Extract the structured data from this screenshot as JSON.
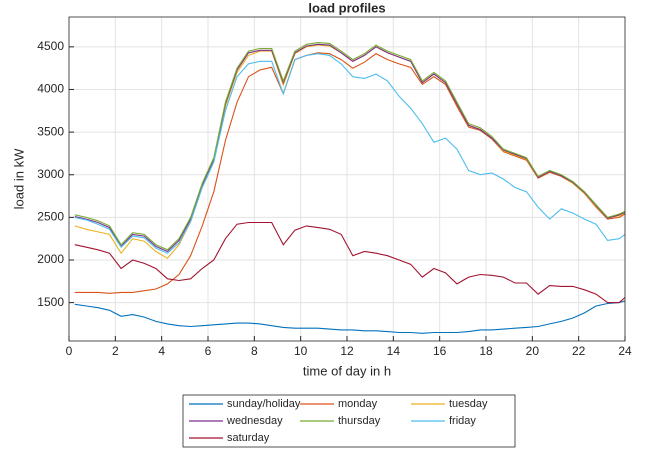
{
  "chart_data": {
    "type": "line",
    "title": "load profiles",
    "xlabel": "time of day in h",
    "ylabel": "load in kW",
    "x": [
      0.25,
      0.75,
      1.25,
      1.75,
      2.25,
      2.75,
      3.25,
      3.75,
      4.25,
      4.75,
      5.25,
      5.75,
      6.25,
      6.75,
      7.25,
      7.75,
      8.25,
      8.75,
      9.25,
      9.75,
      10.25,
      10.75,
      11.25,
      11.75,
      12.25,
      12.75,
      13.25,
      13.75,
      14.25,
      14.75,
      15.25,
      15.75,
      16.25,
      16.75,
      17.25,
      17.75,
      18.25,
      18.75,
      19.25,
      19.75,
      20.25,
      20.75,
      21.25,
      21.75,
      22.25,
      22.75,
      23.25,
      23.75,
      24
    ],
    "series": [
      {
        "name": "sunday/holiday",
        "color": "#0072BD",
        "values": [
          1480,
          1460,
          1440,
          1410,
          1340,
          1360,
          1330,
          1280,
          1250,
          1230,
          1220,
          1230,
          1240,
          1250,
          1260,
          1260,
          1250,
          1230,
          1210,
          1200,
          1200,
          1200,
          1190,
          1180,
          1180,
          1170,
          1170,
          1160,
          1150,
          1150,
          1140,
          1150,
          1150,
          1150,
          1160,
          1180,
          1180,
          1190,
          1200,
          1210,
          1220,
          1250,
          1280,
          1320,
          1380,
          1460,
          1490,
          1500,
          1520
        ]
      },
      {
        "name": "monday",
        "color": "#D95319",
        "values": [
          1620,
          1620,
          1620,
          1610,
          1620,
          1620,
          1640,
          1660,
          1720,
          1830,
          2050,
          2400,
          2800,
          3400,
          3850,
          4150,
          4230,
          4260,
          3950,
          4350,
          4400,
          4430,
          4420,
          4350,
          4250,
          4320,
          4420,
          4350,
          4300,
          4260,
          4060,
          4150,
          4060,
          3800,
          3560,
          3520,
          3420,
          3270,
          3220,
          3170,
          2960,
          3030,
          2980,
          2900,
          2780,
          2620,
          2480,
          2500,
          2540
        ]
      },
      {
        "name": "tuesday",
        "color": "#EDB120",
        "values": [
          2400,
          2360,
          2330,
          2300,
          2080,
          2250,
          2220,
          2100,
          2020,
          2180,
          2450,
          2850,
          3150,
          3800,
          4200,
          4400,
          4450,
          4450,
          4050,
          4420,
          4500,
          4520,
          4510,
          4430,
          4330,
          4400,
          4500,
          4430,
          4380,
          4330,
          4080,
          4180,
          4080,
          3830,
          3580,
          3530,
          3430,
          3280,
          3230,
          3180,
          2970,
          3040,
          2990,
          2900,
          2780,
          2630,
          2490,
          2520,
          2550
        ]
      },
      {
        "name": "wednesday",
        "color": "#7E2F8E",
        "values": [
          2510,
          2480,
          2440,
          2380,
          2160,
          2300,
          2280,
          2160,
          2100,
          2230,
          2480,
          2880,
          3180,
          3830,
          4230,
          4430,
          4460,
          4460,
          4080,
          4430,
          4510,
          4530,
          4520,
          4430,
          4330,
          4400,
          4500,
          4430,
          4380,
          4330,
          4080,
          4180,
          4080,
          3830,
          3580,
          3530,
          3430,
          3290,
          3240,
          3190,
          2970,
          3040,
          2990,
          2910,
          2790,
          2640,
          2490,
          2530,
          2560
        ]
      },
      {
        "name": "thursday",
        "color": "#77AC30",
        "values": [
          2530,
          2500,
          2460,
          2400,
          2180,
          2320,
          2300,
          2180,
          2120,
          2250,
          2500,
          2900,
          3200,
          3850,
          4250,
          4450,
          4480,
          4480,
          4100,
          4450,
          4530,
          4550,
          4540,
          4450,
          4350,
          4420,
          4520,
          4450,
          4400,
          4350,
          4100,
          4200,
          4100,
          3850,
          3600,
          3550,
          3450,
          3300,
          3250,
          3200,
          2980,
          3050,
          3000,
          2920,
          2800,
          2650,
          2500,
          2540,
          2570
        ]
      },
      {
        "name": "friday",
        "color": "#4DBEEE",
        "values": [
          2500,
          2470,
          2420,
          2360,
          2150,
          2280,
          2260,
          2140,
          2080,
          2200,
          2450,
          2850,
          3150,
          3750,
          4150,
          4300,
          4330,
          4330,
          3950,
          4350,
          4400,
          4420,
          4400,
          4300,
          4150,
          4130,
          4180,
          4100,
          3920,
          3780,
          3600,
          3380,
          3430,
          3300,
          3050,
          3000,
          3020,
          2950,
          2850,
          2800,
          2620,
          2480,
          2600,
          2550,
          2480,
          2420,
          2230,
          2250,
          2300
        ]
      },
      {
        "name": "saturday",
        "color": "#A2142F",
        "values": [
          2180,
          2150,
          2120,
          2080,
          1900,
          2000,
          1960,
          1900,
          1780,
          1760,
          1780,
          1900,
          2000,
          2250,
          2420,
          2440,
          2440,
          2440,
          2180,
          2350,
          2400,
          2380,
          2360,
          2300,
          2050,
          2100,
          2080,
          2050,
          2000,
          1950,
          1800,
          1900,
          1850,
          1720,
          1800,
          1830,
          1820,
          1800,
          1730,
          1730,
          1600,
          1700,
          1690,
          1690,
          1650,
          1600,
          1500,
          1500,
          1560
        ]
      }
    ],
    "xlim": [
      0,
      24
    ],
    "xticks": [
      0,
      2,
      4,
      6,
      8,
      10,
      12,
      14,
      16,
      18,
      20,
      22,
      24
    ],
    "ylim": [
      1050,
      4850
    ],
    "yticks": [
      1500,
      2000,
      2500,
      3000,
      3500,
      4000,
      4500
    ],
    "grid": true,
    "legend": "south"
  }
}
